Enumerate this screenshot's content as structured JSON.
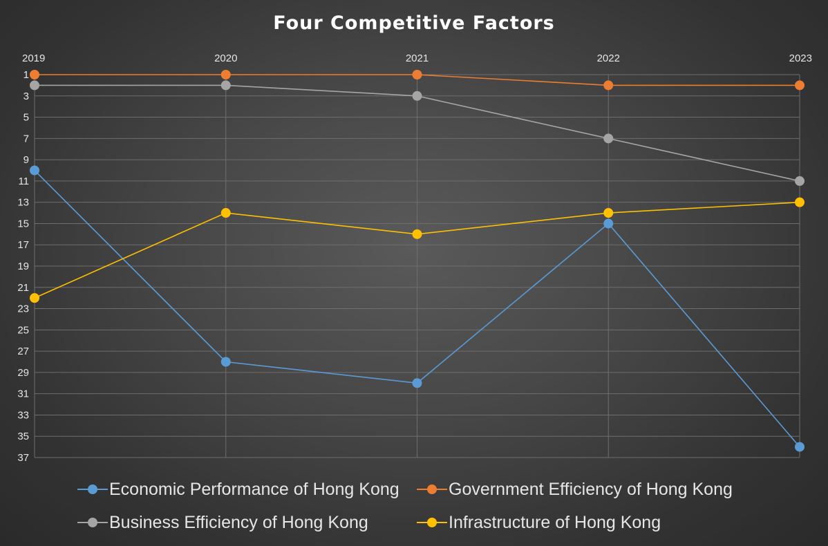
{
  "chart_data": {
    "type": "line",
    "title": "Four Competitive Factors",
    "categories": [
      "2019",
      "2020",
      "2021",
      "2022",
      "2023"
    ],
    "y_ticks": [
      1,
      3,
      5,
      7,
      9,
      11,
      13,
      15,
      17,
      19,
      21,
      23,
      25,
      27,
      29,
      31,
      33,
      35,
      37
    ],
    "ylim": [
      1,
      37
    ],
    "y_reversed": true,
    "x_axis_position": "top",
    "grid": true,
    "legend_position": "bottom",
    "series": [
      {
        "name": "Economic Performance of Hong Kong",
        "values": [
          10,
          28,
          30,
          15,
          36
        ],
        "color": "#5b9bd5"
      },
      {
        "name": "Government Efficiency of Hong Kong",
        "values": [
          1,
          1,
          1,
          2,
          2
        ],
        "color": "#ed7d31"
      },
      {
        "name": "Business Efficiency of Hong Kong",
        "values": [
          2,
          2,
          3,
          7,
          11
        ],
        "color": "#a5a5a5"
      },
      {
        "name": "Infrastructure of Hong Kong",
        "values": [
          22,
          14,
          16,
          14,
          13
        ],
        "color": "#ffc000"
      }
    ]
  }
}
